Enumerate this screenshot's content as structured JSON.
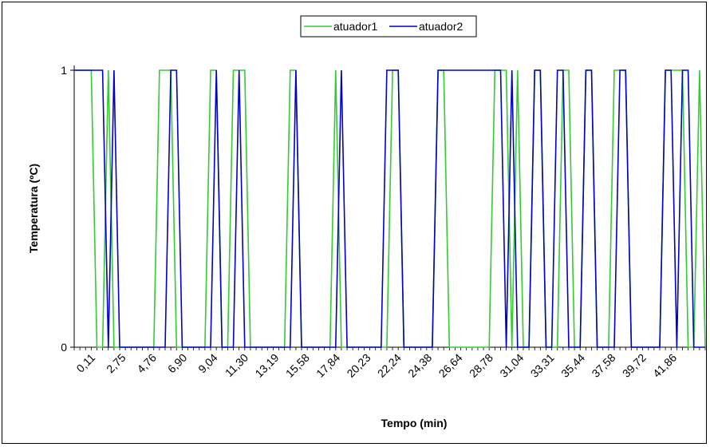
{
  "chart_data": {
    "type": "line",
    "title": "",
    "xlabel": "Tempo (min)",
    "ylabel": "Temperatura (ºC)",
    "ylim": [
      0,
      1
    ],
    "y_ticks": [
      "0",
      "1"
    ],
    "x_tick_labels": [
      "0,11",
      "2,75",
      "4,76",
      "6,90",
      "9,04",
      "11,30",
      "13,19",
      "15,58",
      "17,84",
      "20,23",
      "22,24",
      "24,38",
      "26,64",
      "28,78",
      "31,04",
      "33,31",
      "35,44",
      "37,58",
      "39,72",
      "41,86"
    ],
    "x": [
      0.0,
      0.4,
      0.8,
      1.2,
      1.6,
      2.0,
      2.4,
      2.8,
      3.2,
      3.6,
      4.0,
      4.4,
      4.8,
      5.2,
      5.6,
      6.0,
      6.4,
      6.8,
      7.2,
      7.6,
      8.0,
      8.4,
      8.8,
      9.2,
      9.6,
      10.0,
      10.4,
      10.8,
      11.2,
      11.6,
      12.0,
      12.4,
      12.8,
      13.2,
      13.6,
      14.0,
      14.4,
      14.8,
      15.2,
      15.6,
      16.0,
      16.4,
      16.8,
      17.2,
      17.6,
      18.0,
      18.4,
      18.8,
      19.2,
      19.6,
      20.0,
      20.4,
      20.8,
      21.2,
      21.6,
      22.0,
      22.4,
      22.8,
      23.2,
      23.6,
      24.0,
      24.4,
      24.8,
      25.2,
      25.6,
      26.0,
      26.4,
      26.8,
      27.2,
      27.6,
      28.0,
      28.4,
      28.8,
      29.2,
      29.6,
      30.0,
      30.4,
      30.8,
      31.2,
      31.6,
      32.0,
      32.4,
      32.8,
      33.2,
      33.6,
      34.0,
      34.4,
      34.8,
      35.2,
      35.6,
      36.0,
      36.4,
      36.8,
      37.2,
      37.6,
      38.0,
      38.4,
      38.8,
      39.2,
      39.6,
      40.0,
      40.4,
      40.8,
      41.2,
      41.6,
      42.0,
      42.4,
      42.8,
      43.2,
      43.6,
      44.0,
      44.4
    ],
    "series": [
      {
        "name": "atuador1",
        "color": "#33cc33",
        "values": [
          1,
          1,
          1,
          1,
          0,
          0,
          1,
          0,
          0,
          0,
          0,
          0,
          0,
          0,
          0,
          1,
          1,
          1,
          0,
          0,
          0,
          0,
          0,
          0,
          1,
          1,
          0,
          0,
          1,
          1,
          1,
          0,
          0,
          0,
          0,
          0,
          0,
          0,
          1,
          1,
          0,
          0,
          0,
          0,
          0,
          0,
          1,
          0,
          0,
          0,
          0,
          0,
          0,
          0,
          0,
          0,
          1,
          1,
          0,
          0,
          0,
          0,
          0,
          0,
          1,
          1,
          0,
          0,
          0,
          0,
          0,
          0,
          0,
          0,
          1,
          1,
          1,
          0,
          1,
          0,
          0,
          1,
          1,
          0,
          0,
          0,
          1,
          1,
          0,
          0,
          1,
          1,
          0,
          0,
          0,
          1,
          1,
          1,
          0,
          0,
          0,
          0,
          0,
          0,
          1,
          1,
          1,
          1,
          0,
          0,
          1,
          0
        ]
      },
      {
        "name": "atuador2",
        "color": "#0000cc",
        "values": [
          1,
          1,
          1,
          1,
          1,
          1,
          0,
          1,
          0,
          0,
          0,
          0,
          0,
          0,
          0,
          0,
          0,
          1,
          1,
          0,
          0,
          0,
          0,
          0,
          0,
          1,
          0,
          0,
          0,
          1,
          0,
          0,
          0,
          0,
          0,
          0,
          0,
          0,
          0,
          1,
          0,
          0,
          0,
          0,
          0,
          0,
          0,
          1,
          0,
          0,
          0,
          0,
          0,
          0,
          0,
          1,
          1,
          1,
          0,
          0,
          0,
          0,
          0,
          0,
          1,
          1,
          1,
          1,
          1,
          1,
          1,
          1,
          1,
          1,
          1,
          1,
          0,
          1,
          0,
          0,
          0,
          1,
          1,
          0,
          0,
          1,
          1,
          0,
          0,
          0,
          1,
          1,
          0,
          0,
          0,
          0,
          1,
          1,
          0,
          0,
          0,
          0,
          0,
          0,
          1,
          1,
          0,
          1,
          1,
          0,
          0,
          0
        ]
      }
    ],
    "legend_position": "top-center",
    "grid": false
  }
}
